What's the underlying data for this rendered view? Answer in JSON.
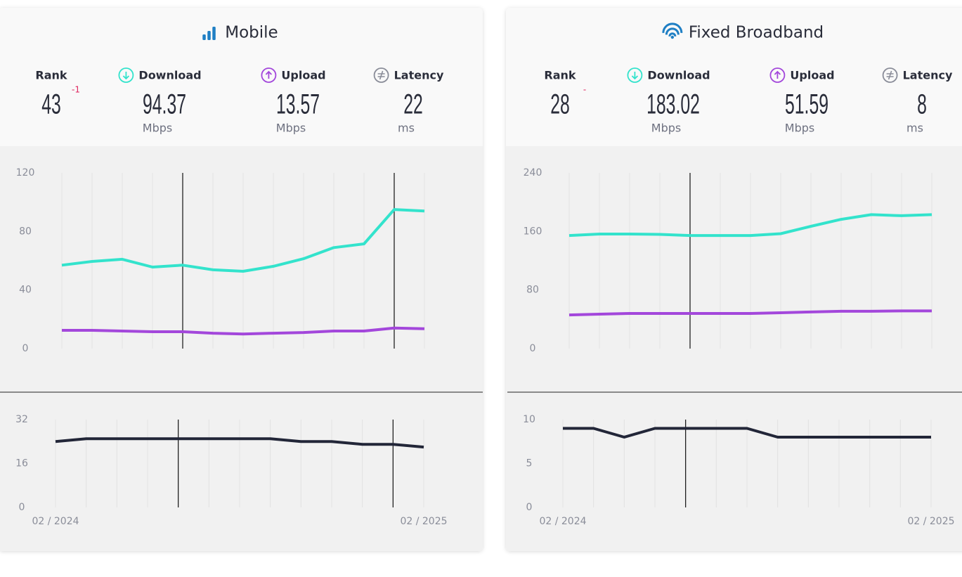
{
  "panels": [
    {
      "title": "Mobile",
      "stats": [
        {
          "label": "Rank",
          "value": 43,
          "change": -1
        },
        {
          "label": "Download",
          "value": 94.37,
          "unit": "Mbps"
        },
        {
          "label": "Upload",
          "value": 13.57,
          "unit": "Mbps"
        },
        {
          "label": "Latency",
          "value": 22,
          "unit": "ms"
        }
      ],
      "chart_data": [
        {
          "type": "line",
          "ylim": [
            0,
            120
          ],
          "yticks": [
            0,
            40,
            80,
            120
          ],
          "grid": true,
          "series": [
            {
              "color": "#33e3cc",
              "values": [
                57,
                59.5,
                61,
                55.7,
                57,
                53.8,
                52.8,
                56.2,
                61.4,
                69,
                71.5,
                95,
                94
              ]
            },
            {
              "color": "#a347db",
              "values": [
                12.5,
                12.5,
                12,
                11.5,
                11.5,
                10.5,
                10,
                10.5,
                11,
                12,
                12,
                14,
                13.6
              ]
            }
          ]
        },
        {
          "type": "line",
          "ylim": [
            0,
            32
          ],
          "yticks": [
            0,
            16,
            32
          ],
          "grid": true,
          "categories": [
            "02 / 2024",
            null,
            null,
            null,
            null,
            null,
            null,
            null,
            null,
            null,
            null,
            null,
            "02 / 2025"
          ],
          "series": [
            {
              "color": "#222638",
              "values": [
                24,
                25,
                25,
                25,
                25,
                25,
                25,
                25,
                24,
                24,
                23,
                23,
                22
              ]
            }
          ]
        }
      ]
    },
    {
      "title": "Fixed Broadband",
      "stats": [
        {
          "label": "Rank",
          "value": 28,
          "change": "-"
        },
        {
          "label": "Download",
          "value": 183.02,
          "unit": "Mbps"
        },
        {
          "label": "Upload",
          "value": 51.59,
          "unit": "Mbps"
        },
        {
          "label": "Latency",
          "value": 8,
          "unit": "ms"
        }
      ],
      "chart_data": [
        {
          "type": "line",
          "ylim": [
            0,
            240
          ],
          "yticks": [
            0,
            80,
            160,
            240
          ],
          "grid": true,
          "series": [
            {
              "color": "#33e3cc",
              "values": [
                154.5,
                156.5,
                156.5,
                156,
                154.5,
                154.5,
                154.5,
                157,
                167,
                176.5,
                183,
                181.5,
                183
              ]
            },
            {
              "color": "#a347db",
              "values": [
                46,
                47,
                48,
                48,
                48,
                48,
                48,
                49,
                50,
                51,
                51,
                51.5,
                51.5
              ]
            }
          ]
        },
        {
          "type": "line",
          "ylim": [
            0,
            10
          ],
          "yticks": [
            0,
            5,
            10
          ],
          "grid": true,
          "categories": [
            "02 / 2024",
            null,
            null,
            null,
            null,
            null,
            null,
            null,
            null,
            null,
            null,
            null,
            "02 / 2025"
          ],
          "series": [
            {
              "color": "#222638",
              "values": [
                9,
                9,
                8,
                9,
                9,
                9,
                9,
                8,
                8,
                8,
                8,
                8,
                8
              ]
            }
          ]
        }
      ]
    }
  ]
}
